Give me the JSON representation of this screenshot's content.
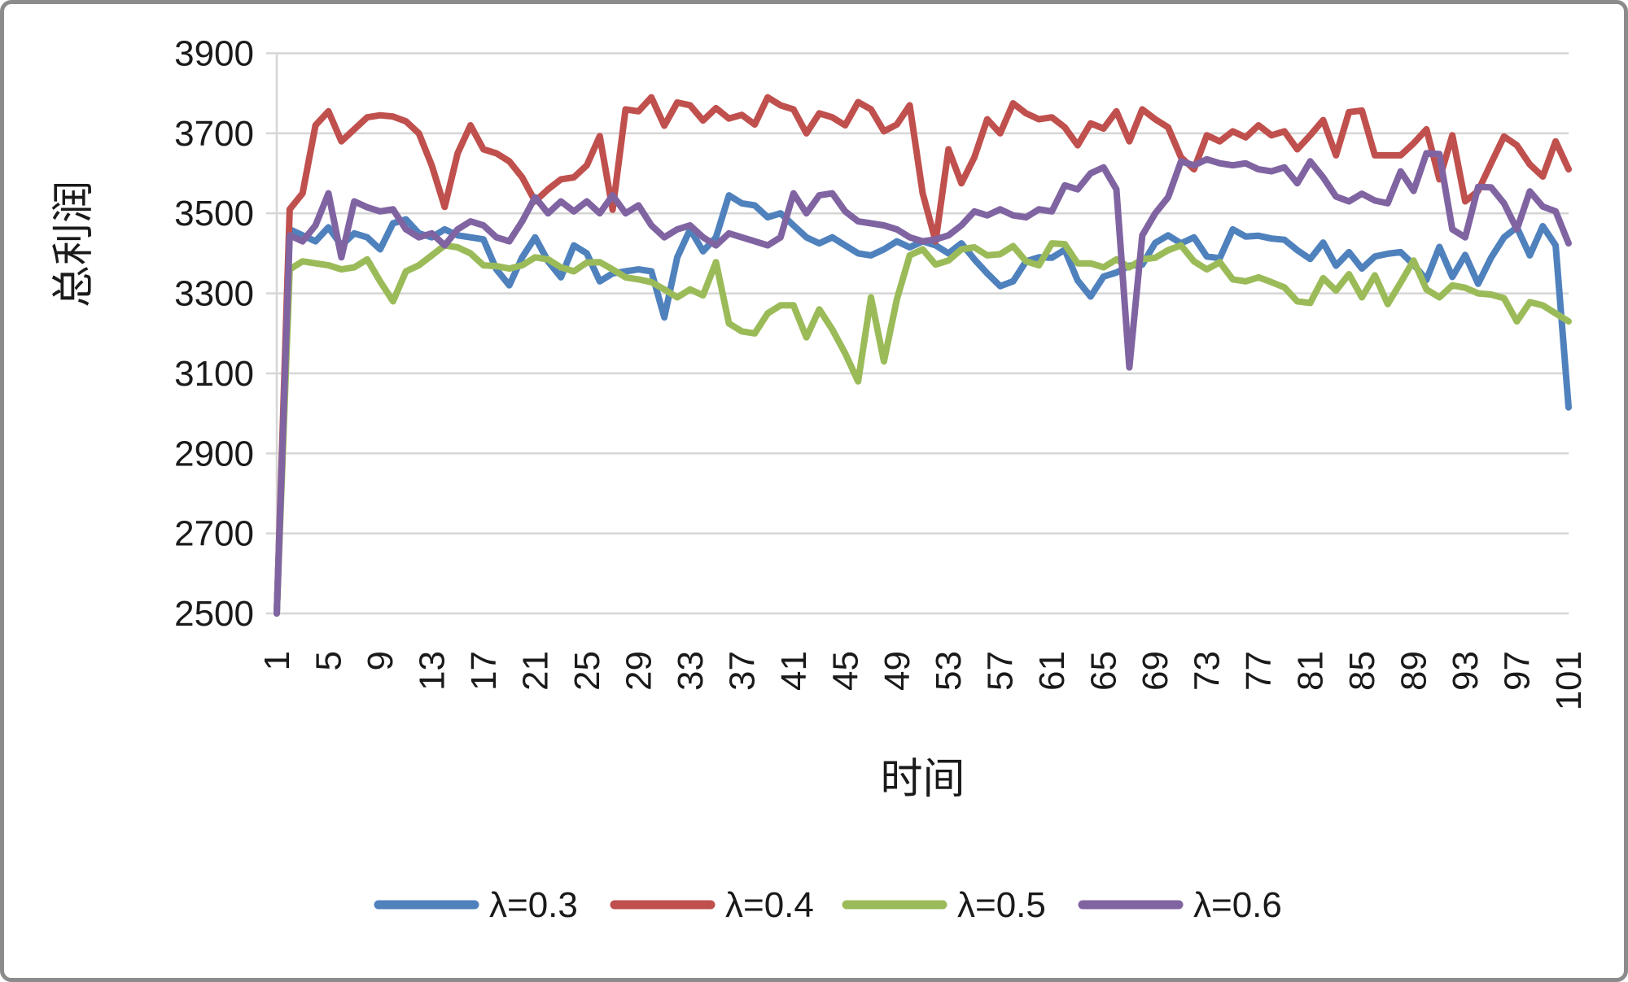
{
  "chart_data": {
    "type": "line",
    "title": "",
    "xlabel": "时间",
    "ylabel": "总利润",
    "ylim": [
      2500,
      3900
    ],
    "ytick_step": 200,
    "yticks": [
      "2500",
      "2700",
      "2900",
      "3100",
      "3300",
      "3500",
      "3700",
      "3900"
    ],
    "xticks": [
      "1",
      "5",
      "9",
      "13",
      "17",
      "21",
      "25",
      "29",
      "33",
      "37",
      "41",
      "45",
      "49",
      "53",
      "57",
      "61",
      "65",
      "69",
      "73",
      "77",
      "81",
      "85",
      "89",
      "93",
      "97",
      "101"
    ],
    "x_range": [
      1,
      101
    ],
    "grid": true,
    "legend_position": "bottom",
    "colors": {
      "gridline": "#d6d6d6",
      "text": "#1a1a1a",
      "frame": "#8b8b8b"
    },
    "series": [
      {
        "name": "λ=0.3",
        "color": "#4F81BD",
        "values": [
          2500,
          3460,
          3445,
          3430,
          3465,
          3420,
          3450,
          3440,
          3410,
          3475,
          3485,
          3450,
          3440,
          3460,
          3445,
          3440,
          3435,
          3360,
          3320,
          3390,
          3440,
          3380,
          3340,
          3420,
          3400,
          3330,
          3350,
          3355,
          3360,
          3355,
          3240,
          3390,
          3460,
          3405,
          3440,
          3545,
          3525,
          3520,
          3490,
          3500,
          3470,
          3440,
          3425,
          3440,
          3420,
          3400,
          3395,
          3410,
          3430,
          3415,
          3430,
          3420,
          3400,
          3425,
          3385,
          3350,
          3318,
          3330,
          3380,
          3390,
          3389,
          3409,
          3332,
          3292,
          3342,
          3352,
          3369,
          3372,
          3426,
          3445,
          3425,
          3440,
          3392,
          3388,
          3460,
          3442,
          3444,
          3437,
          3434,
          3408,
          3386,
          3427,
          3369,
          3403,
          3362,
          3392,
          3399,
          3403,
          3372,
          3334,
          3416,
          3341,
          3396,
          3324,
          3389,
          3440,
          3465,
          3395,
          3468,
          3420,
          3015
        ]
      },
      {
        "name": "λ=0.4",
        "color": "#C0504D",
        "values": [
          2500,
          3510,
          3550,
          3720,
          3755,
          3680,
          3710,
          3740,
          3745,
          3742,
          3730,
          3700,
          3620,
          3516,
          3650,
          3720,
          3660,
          3650,
          3630,
          3590,
          3530,
          3560,
          3585,
          3590,
          3620,
          3693,
          3509,
          3760,
          3755,
          3790,
          3719,
          3777,
          3770,
          3732,
          3763,
          3737,
          3746,
          3722,
          3790,
          3770,
          3760,
          3700,
          3750,
          3740,
          3720,
          3778,
          3760,
          3705,
          3722,
          3770,
          3550,
          3430,
          3660,
          3575,
          3640,
          3735,
          3700,
          3775,
          3750,
          3735,
          3740,
          3715,
          3670,
          3725,
          3712,
          3755,
          3680,
          3760,
          3735,
          3715,
          3640,
          3610,
          3695,
          3680,
          3705,
          3690,
          3720,
          3695,
          3705,
          3660,
          3695,
          3733,
          3645,
          3753,
          3757,
          3645,
          3645,
          3645,
          3675,
          3710,
          3585,
          3695,
          3530,
          3556,
          3625,
          3692,
          3670,
          3622,
          3592,
          3680,
          3610
        ]
      },
      {
        "name": "λ=0.5",
        "color": "#9BBB59",
        "values": [
          2500,
          3360,
          3380,
          3375,
          3370,
          3360,
          3365,
          3385,
          3330,
          3280,
          3355,
          3370,
          3395,
          3420,
          3415,
          3400,
          3370,
          3368,
          3362,
          3370,
          3390,
          3385,
          3365,
          3355,
          3377,
          3378,
          3360,
          3340,
          3335,
          3328,
          3310,
          3290,
          3310,
          3295,
          3378,
          3225,
          3205,
          3200,
          3250,
          3270,
          3270,
          3190,
          3260,
          3210,
          3150,
          3080,
          3290,
          3130,
          3285,
          3395,
          3410,
          3372,
          3382,
          3410,
          3415,
          3395,
          3398,
          3418,
          3380,
          3370,
          3425,
          3423,
          3375,
          3375,
          3365,
          3385,
          3365,
          3385,
          3389,
          3408,
          3420,
          3380,
          3360,
          3378,
          3335,
          3330,
          3340,
          3328,
          3315,
          3280,
          3276,
          3338,
          3307,
          3348,
          3290,
          3345,
          3273,
          3327,
          3382,
          3310,
          3290,
          3320,
          3314,
          3300,
          3297,
          3288,
          3230,
          3278,
          3270,
          3250,
          3230
        ]
      },
      {
        "name": "λ=0.6",
        "color": "#8064A2",
        "values": [
          2500,
          3445,
          3430,
          3470,
          3550,
          3390,
          3530,
          3515,
          3505,
          3510,
          3460,
          3440,
          3450,
          3420,
          3460,
          3480,
          3470,
          3440,
          3430,
          3480,
          3540,
          3500,
          3530,
          3505,
          3530,
          3500,
          3545,
          3500,
          3520,
          3470,
          3440,
          3460,
          3470,
          3440,
          3420,
          3450,
          3440,
          3430,
          3420,
          3440,
          3550,
          3500,
          3545,
          3550,
          3505,
          3480,
          3475,
          3470,
          3460,
          3440,
          3430,
          3435,
          3445,
          3470,
          3505,
          3495,
          3510,
          3495,
          3490,
          3510,
          3505,
          3570,
          3560,
          3600,
          3615,
          3560,
          3115,
          3445,
          3500,
          3540,
          3630,
          3620,
          3635,
          3625,
          3620,
          3625,
          3610,
          3605,
          3615,
          3575,
          3630,
          3590,
          3542,
          3530,
          3549,
          3532,
          3525,
          3605,
          3556,
          3650,
          3648,
          3460,
          3440,
          3566,
          3565,
          3525,
          3460,
          3555,
          3517,
          3505,
          3425
        ]
      }
    ]
  }
}
